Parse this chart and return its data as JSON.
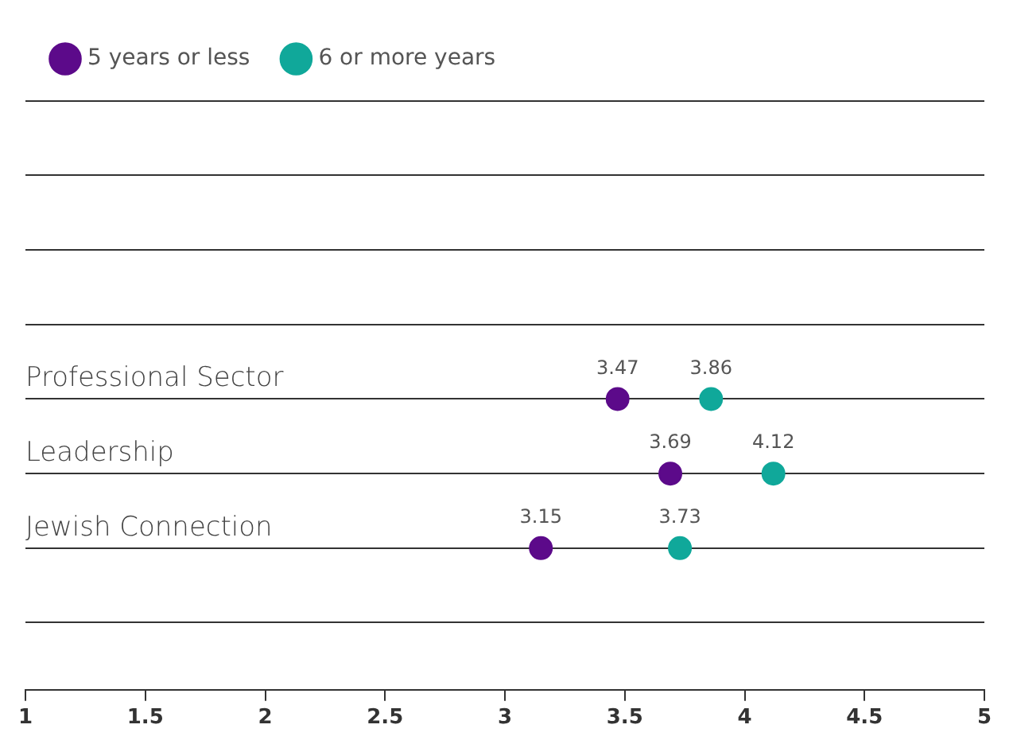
{
  "chart_data": {
    "type": "scatter",
    "orientation": "horizontal",
    "categories": [
      null,
      null,
      null,
      null,
      "Professional Sector",
      "Leadership",
      "Jewish Connection",
      null
    ],
    "series": [
      {
        "name": "5 years or less",
        "color": "#5c0a8a",
        "values": [
          null,
          null,
          null,
          null,
          3.47,
          3.69,
          3.15,
          null
        ]
      },
      {
        "name": "6 or more years",
        "color": "#10a89a",
        "values": [
          null,
          null,
          null,
          null,
          3.86,
          4.12,
          3.73,
          null
        ]
      }
    ],
    "xlim": [
      1,
      5
    ],
    "xticks": [
      1,
      1.5,
      2,
      2.5,
      3,
      3.5,
      4,
      4.5,
      5
    ],
    "grid": "y",
    "legend": "top left",
    "data_labels": true,
    "marker": "circle"
  }
}
